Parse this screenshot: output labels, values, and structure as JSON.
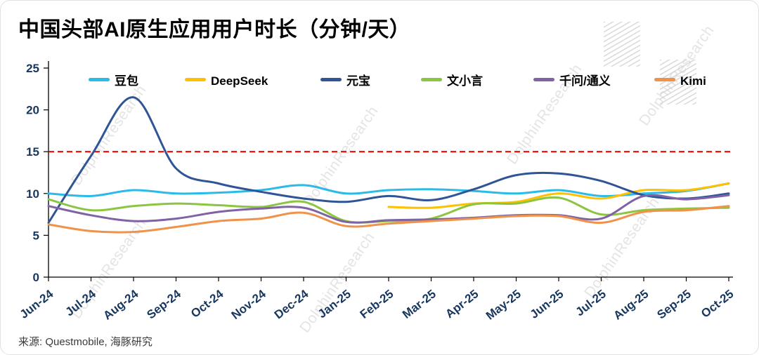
{
  "title": "中国头部AI原生应用用户时长（分钟/天）",
  "source": "来源: Questmobile, 海豚研究",
  "watermark": "DolphinResearch",
  "chart_data": {
    "type": "line",
    "title": "中国头部AI原生应用用户时长（分钟/天）",
    "xlabel": "",
    "ylabel": "",
    "ylim": [
      0,
      25
    ],
    "yticks": [
      0,
      5,
      10,
      15,
      20,
      25
    ],
    "grid": false,
    "legend_position": "top",
    "reference_line": {
      "value": 15,
      "color": "#FF0000",
      "style": "dashed"
    },
    "categories": [
      "Jun-24",
      "Jul-24",
      "Aug-24",
      "Sep-24",
      "Oct-24",
      "Nov-24",
      "Dec-24",
      "Jan-25",
      "Feb-25",
      "Mar-25",
      "Apr-25",
      "May-25",
      "Jun-25",
      "Jul-25",
      "Aug-25",
      "Sep-25",
      "Oct-25"
    ],
    "series": [
      {
        "name": "豆包",
        "color": "#2BBBE8",
        "values": [
          10.0,
          9.7,
          10.4,
          10.0,
          10.1,
          10.4,
          11.0,
          10.0,
          10.4,
          10.5,
          10.3,
          10.0,
          10.4,
          9.7,
          10.0,
          10.3,
          11.2
        ]
      },
      {
        "name": "DeepSeek",
        "color": "#FFC000",
        "values": [
          null,
          null,
          null,
          null,
          null,
          null,
          null,
          null,
          8.4,
          8.3,
          8.8,
          9.0,
          10.0,
          9.4,
          10.4,
          10.4,
          11.2
        ]
      },
      {
        "name": "元宝",
        "color": "#2F5597",
        "values": [
          6.5,
          14.5,
          21.5,
          13.0,
          11.2,
          10.2,
          9.4,
          9.0,
          9.7,
          9.2,
          10.5,
          12.2,
          12.4,
          11.5,
          9.8,
          9.4,
          10.0
        ]
      },
      {
        "name": "文小言",
        "color": "#8CC540",
        "values": [
          9.3,
          8.0,
          8.5,
          8.8,
          8.6,
          8.4,
          9.0,
          6.7,
          6.7,
          7.0,
          8.7,
          8.8,
          9.5,
          7.5,
          8.0,
          8.2,
          8.3
        ]
      },
      {
        "name": "千问/通义",
        "color": "#7F63A5",
        "values": [
          8.5,
          7.4,
          6.7,
          7.0,
          7.8,
          8.2,
          8.3,
          6.6,
          6.8,
          6.9,
          7.1,
          7.4,
          7.4,
          7.0,
          9.7,
          9.3,
          9.8
        ]
      },
      {
        "name": "Kimi",
        "color": "#F09249",
        "values": [
          6.3,
          5.5,
          5.4,
          6.0,
          6.7,
          7.0,
          7.7,
          6.1,
          6.4,
          6.7,
          7.0,
          7.3,
          7.3,
          6.5,
          7.8,
          8.0,
          8.5
        ]
      }
    ]
  }
}
